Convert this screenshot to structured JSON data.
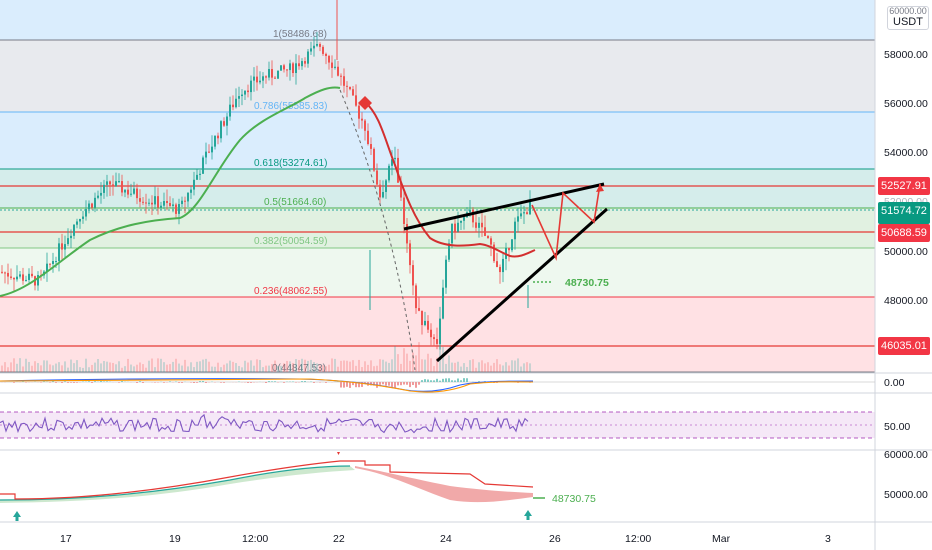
{
  "currency": {
    "line1": "60000.00",
    "line2": "USDT"
  },
  "price_axis": {
    "labels": [
      "58000.00",
      "56000.00",
      "54000.00",
      "52000.00",
      "50000.00",
      "48000.00"
    ]
  },
  "time_axis": {
    "labels": [
      "17",
      "19",
      "12:00",
      "22",
      "24",
      "26",
      "12:00",
      "Mar",
      "3"
    ]
  },
  "fib_levels": [
    {
      "label": "1(58486.68)",
      "price": 58486.68,
      "color": "#787b86"
    },
    {
      "label": "0.786(55585.83)",
      "price": 55585.83,
      "color": "#64b5f6"
    },
    {
      "label": "0.618(53274.61)",
      "price": 53274.61,
      "color": "#089981"
    },
    {
      "label": "0.5(51664.60)",
      "price": 51664.6,
      "color": "#4caf50"
    },
    {
      "label": "0.382(50054.59)",
      "price": 50054.59,
      "color": "#81c784"
    },
    {
      "label": "0.236(48062.55)",
      "price": 48062.55,
      "color": "#f23645"
    },
    {
      "label": "0(44847.53)",
      "price": 44847.53,
      "color": "#787b86"
    }
  ],
  "price_badges": [
    {
      "text": "52527.91",
      "color": "#f23645",
      "price": 52527.91
    },
    {
      "text": "51574.72",
      "color": "#089981",
      "price": 51574.72
    },
    {
      "text": "50688.59",
      "color": "#f23645",
      "price": 50688.59
    },
    {
      "text": "46035.01",
      "color": "#f23645",
      "price": 46035.01
    }
  ],
  "target_label": "48730.75",
  "macd": {
    "axis_label": "0.00"
  },
  "rsi": {
    "axis_label": "50.00"
  },
  "bottom_panel": {
    "axis_labels": [
      "60000.00",
      "50000.00"
    ],
    "label": "48730.75"
  },
  "colors": {
    "up": "#26a69a",
    "down": "#ef5350",
    "ma_green": "#4caf50",
    "ma_red": "#d32f2f",
    "bands": "#9c27b0"
  },
  "chart_data": {
    "type": "candlestick",
    "symbol_quote": "USDT",
    "y_range": [
      44400,
      60000
    ],
    "annotations": [
      "rising wedge",
      "target 48730.75"
    ],
    "close_path": [
      {
        "x": "17",
        "y": 48600
      },
      {
        "x": "18",
        "y": 52200
      },
      {
        "x": "19",
        "y": 51800
      },
      {
        "x": "20",
        "y": 55800
      },
      {
        "x": "21",
        "y": 57300
      },
      {
        "x": "22",
        "y": 58200
      },
      {
        "x": "22 12:00",
        "y": 52800
      },
      {
        "x": "23",
        "y": 50600
      },
      {
        "x": "23 12:00",
        "y": 45200
      },
      {
        "x": "24",
        "y": 50400
      },
      {
        "x": "25",
        "y": 49500
      },
      {
        "x": "25 12:00",
        "y": 51200
      }
    ]
  }
}
